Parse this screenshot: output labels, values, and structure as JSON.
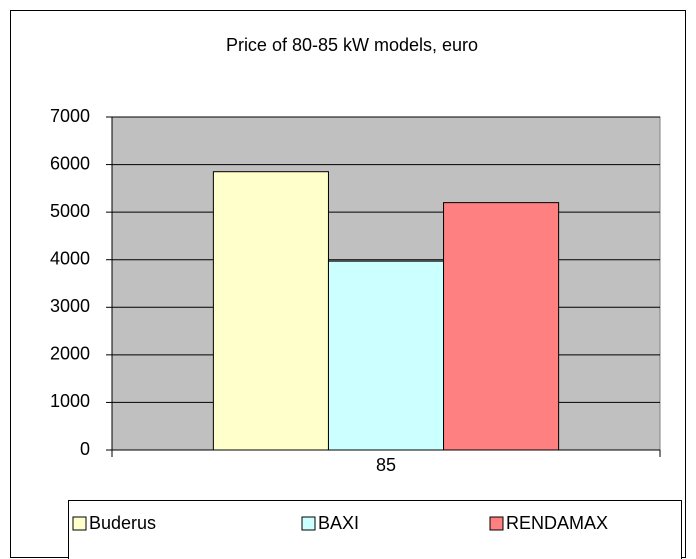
{
  "chart_data": {
    "type": "bar",
    "title": "Price of 80-85 kW models, euro",
    "categories": [
      "85"
    ],
    "series": [
      {
        "name": "Buderus",
        "color": "#ffffcc",
        "values": [
          5850
        ]
      },
      {
        "name": "BAXI",
        "color": "#ccffff",
        "values": [
          3970
        ]
      },
      {
        "name": "RENDAMAX",
        "color": "#ff8080",
        "values": [
          5200
        ]
      }
    ],
    "ylim": [
      0,
      7000
    ],
    "yticks": [
      0,
      1000,
      2000,
      3000,
      4000,
      5000,
      6000,
      7000
    ],
    "grid": true,
    "legend": "bottom",
    "plot_background": "#c0c0c0"
  }
}
